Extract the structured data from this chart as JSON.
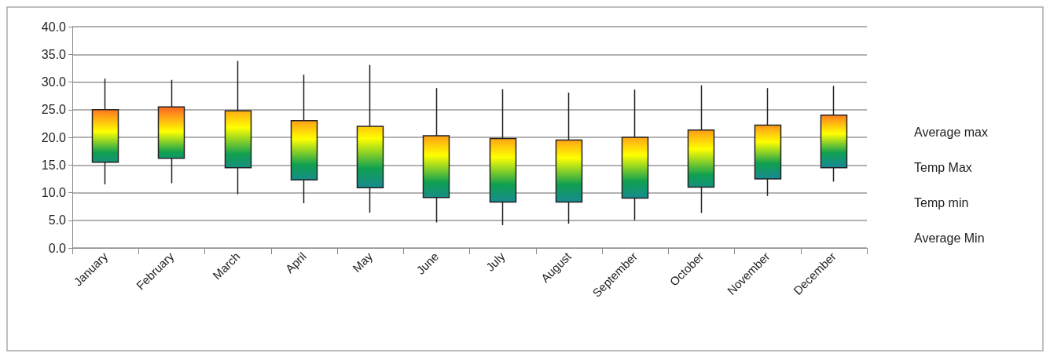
{
  "chart_data": {
    "type": "candlestick",
    "categories": [
      "January",
      "February",
      "March",
      "April",
      "May",
      "June",
      "July",
      "August",
      "September",
      "October",
      "November",
      "December"
    ],
    "ohlc": [
      [
        25.0,
        30.6,
        11.5,
        15.5
      ],
      [
        25.5,
        30.4,
        11.7,
        16.2
      ],
      [
        24.8,
        33.8,
        9.7,
        14.5
      ],
      [
        23.0,
        31.3,
        8.1,
        12.3
      ],
      [
        22.0,
        33.1,
        6.4,
        10.9
      ],
      [
        20.3,
        28.9,
        4.6,
        9.1
      ],
      [
        19.8,
        28.7,
        4.1,
        8.3
      ],
      [
        19.5,
        28.1,
        4.4,
        8.3
      ],
      [
        20.0,
        28.6,
        5.0,
        9.0
      ],
      [
        21.3,
        29.4,
        6.3,
        11.0
      ],
      [
        22.2,
        28.9,
        9.4,
        12.5
      ],
      [
        24.0,
        29.3,
        12.0,
        14.5
      ]
    ],
    "ylim": [
      0,
      40
    ],
    "yticks": [
      {
        "value": 0,
        "label": "0.0"
      },
      {
        "value": 5,
        "label": "5.0"
      },
      {
        "value": 10,
        "label": "10.0"
      },
      {
        "value": 15,
        "label": "15.0"
      },
      {
        "value": 20,
        "label": "20.0"
      },
      {
        "value": 25,
        "label": "25.0"
      },
      {
        "value": 30,
        "label": "30.0"
      },
      {
        "value": 35,
        "label": "35.0"
      },
      {
        "value": 40,
        "label": "40.0"
      }
    ],
    "grid": "y",
    "annotations": [
      "Average max",
      "Temp Max",
      "Temp min",
      "Average Min"
    ]
  }
}
